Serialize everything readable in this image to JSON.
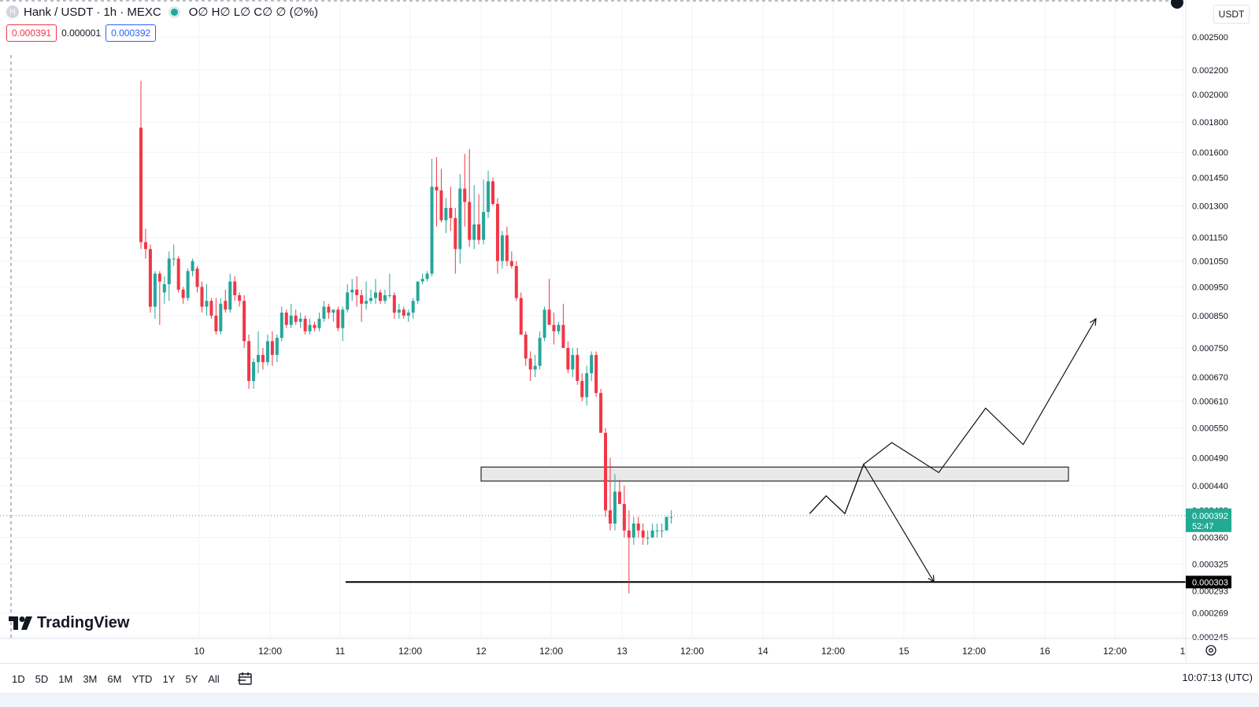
{
  "legend": {
    "symbol_icon": "H",
    "symbol": "Hank / USDT · 1h · MEXC",
    "ohlc": "O∅ H∅ L∅ C∅ ∅ (∅%)"
  },
  "quote": {
    "sell_price": "0.000391",
    "spread": "0.000001",
    "buy_price": "0.000392"
  },
  "currency_button": "USDT",
  "logo_text": "TradingView",
  "range_buttons": [
    "1D",
    "5D",
    "1M",
    "3M",
    "6M",
    "YTD",
    "1Y",
    "5Y",
    "All"
  ],
  "clock": "10:07:13 (UTC)",
  "colors": {
    "up": "#26a69a",
    "down": "#f23645",
    "current_price_label": "#22ab94",
    "support_line": "#000000"
  },
  "icons": [
    "settings-icon",
    "calendar-range-icon",
    "tradingview-logo-icon",
    "plus-circle-icon"
  ],
  "chart_data": {
    "type": "candlestick",
    "scale": "log",
    "y_ticks": [
      "0.002500",
      "0.002200",
      "0.002000",
      "0.001800",
      "0.001600",
      "0.001450",
      "0.001300",
      "0.001150",
      "0.001050",
      "0.000950",
      "0.000850",
      "0.000750",
      "0.000670",
      "0.000610",
      "0.000550",
      "0.000490",
      "0.000440",
      "0.000360",
      "0.000325",
      "0.000269",
      "0.000245"
    ],
    "y_ticks_partially_hidden": [
      "0.000400",
      "0.000293"
    ],
    "x_ticks": [
      "10",
      "12:00",
      "11",
      "12:00",
      "12",
      "12:00",
      "13",
      "12:00",
      "14",
      "12:00",
      "15",
      "12:00",
      "16",
      "12:00",
      "1"
    ],
    "current_price": {
      "price": "0.000392",
      "countdown": "52:47"
    },
    "support_level": {
      "price": "0.000303"
    },
    "resistance_zone": {
      "low": 0.000448,
      "high": 0.000473
    },
    "candles_ohlc": [
      [
        0.00176,
        0.00211,
        0.0011,
        0.00113
      ],
      [
        0.00113,
        0.00119,
        0.00106,
        0.0011
      ],
      [
        0.0011,
        0.00112,
        0.00086,
        0.00088
      ],
      [
        0.00088,
        0.00101,
        0.00084,
        0.001
      ],
      [
        0.001,
        0.00101,
        0.00082,
        0.00097
      ],
      [
        0.00093,
        0.00099,
        0.00089,
        0.00096
      ],
      [
        0.00096,
        0.00109,
        0.0009,
        0.00106
      ],
      [
        0.00106,
        0.00112,
        0.00103,
        0.00106
      ],
      [
        0.00106,
        0.00107,
        0.00093,
        0.00094
      ],
      [
        0.00094,
        0.00095,
        0.00089,
        0.00091
      ],
      [
        0.00091,
        0.00102,
        0.0009,
        0.00101
      ],
      [
        0.00101,
        0.00106,
        0.00099,
        0.00105
      ],
      [
        0.00102,
        0.00103,
        0.00093,
        0.00095
      ],
      [
        0.00095,
        0.00097,
        0.00086,
        0.00088
      ],
      [
        0.00088,
        0.00096,
        0.00085,
        0.0009
      ],
      [
        0.0009,
        0.00091,
        0.00084,
        0.00085
      ],
      [
        0.00085,
        0.00091,
        0.00079,
        0.0008
      ],
      [
        0.0008,
        0.00091,
        0.00079,
        0.00089
      ],
      [
        0.0009,
        0.00094,
        0.00086,
        0.00087
      ],
      [
        0.00087,
        0.001,
        0.00086,
        0.00097
      ],
      [
        0.00097,
        0.00099,
        0.0009,
        0.00092
      ],
      [
        0.00092,
        0.00093,
        0.00088,
        0.0009
      ],
      [
        0.0009,
        0.00092,
        0.00075,
        0.00077
      ],
      [
        0.00077,
        0.00079,
        0.00064,
        0.00066
      ],
      [
        0.00066,
        0.00072,
        0.00064,
        0.00071
      ],
      [
        0.00071,
        0.0008,
        0.00068,
        0.00073
      ],
      [
        0.00073,
        0.00075,
        0.00069,
        0.00071
      ],
      [
        0.00071,
        0.00079,
        0.0007,
        0.00077
      ],
      [
        0.00077,
        0.0008,
        0.0007,
        0.00073
      ],
      [
        0.00073,
        0.00079,
        0.00071,
        0.00078
      ],
      [
        0.00078,
        0.00088,
        0.00077,
        0.00086
      ],
      [
        0.00086,
        0.00087,
        0.00081,
        0.00082
      ],
      [
        0.00082,
        0.00089,
        0.00081,
        0.00085
      ],
      [
        0.00085,
        0.00087,
        0.00082,
        0.00083
      ],
      [
        0.00083,
        0.00086,
        0.00081,
        0.00084
      ],
      [
        0.00084,
        0.00085,
        0.00079,
        0.0008
      ],
      [
        0.0008,
        0.00084,
        0.00079,
        0.00082
      ],
      [
        0.00082,
        0.00083,
        0.0008,
        0.00081
      ],
      [
        0.00081,
        0.00086,
        0.0008,
        0.00084
      ],
      [
        0.00084,
        0.0009,
        0.00083,
        0.00088
      ],
      [
        0.00088,
        0.00089,
        0.00084,
        0.00086
      ],
      [
        0.00086,
        0.00087,
        0.00083,
        0.00087
      ],
      [
        0.00087,
        0.00088,
        0.0008,
        0.00081
      ],
      [
        0.00081,
        0.00088,
        0.00077,
        0.00087
      ],
      [
        0.00087,
        0.00096,
        0.00086,
        0.00093
      ],
      [
        0.00093,
        0.00098,
        0.0009,
        0.00094
      ],
      [
        0.00094,
        0.00099,
        0.00088,
        0.00092
      ],
      [
        0.00092,
        0.00094,
        0.00083,
        0.00089
      ],
      [
        0.00089,
        0.00097,
        0.00087,
        0.0009
      ],
      [
        0.0009,
        0.00094,
        0.00089,
        0.00091
      ],
      [
        0.00091,
        0.00098,
        0.00089,
        0.00093
      ],
      [
        0.00093,
        0.00094,
        0.00089,
        0.0009
      ],
      [
        0.0009,
        0.00094,
        0.00089,
        0.00092
      ],
      [
        0.00092,
        0.001,
        0.00091,
        0.00092
      ],
      [
        0.00092,
        0.00093,
        0.00084,
        0.00086
      ],
      [
        0.00086,
        0.00089,
        0.00084,
        0.00087
      ],
      [
        0.00087,
        0.00088,
        0.00084,
        0.00085
      ],
      [
        0.00085,
        0.00087,
        0.00083,
        0.00086
      ],
      [
        0.00086,
        0.00091,
        0.00084,
        0.0009
      ],
      [
        0.0009,
        0.00097,
        0.00089,
        0.00097
      ],
      [
        0.00097,
        0.001,
        0.00096,
        0.00098
      ],
      [
        0.00098,
        0.00101,
        0.00097,
        0.001
      ],
      [
        0.001,
        0.00156,
        0.00099,
        0.0014
      ],
      [
        0.0014,
        0.00157,
        0.0012,
        0.00138
      ],
      [
        0.00138,
        0.0015,
        0.00122,
        0.00123
      ],
      [
        0.00123,
        0.00134,
        0.00117,
        0.00129
      ],
      [
        0.00129,
        0.0014,
        0.00118,
        0.00124
      ],
      [
        0.00124,
        0.00129,
        0.001,
        0.0011
      ],
      [
        0.0011,
        0.00147,
        0.00104,
        0.00139
      ],
      [
        0.00139,
        0.00159,
        0.0012,
        0.00132
      ],
      [
        0.00132,
        0.00162,
        0.00111,
        0.00114
      ],
      [
        0.00114,
        0.00141,
        0.0011,
        0.00121
      ],
      [
        0.00121,
        0.00136,
        0.00112,
        0.00114
      ],
      [
        0.00114,
        0.00144,
        0.00112,
        0.00127
      ],
      [
        0.00127,
        0.00149,
        0.00124,
        0.00143
      ],
      [
        0.00143,
        0.00145,
        0.0013,
        0.00131
      ],
      [
        0.00131,
        0.00134,
        0.001,
        0.00105
      ],
      [
        0.00105,
        0.00118,
        0.00102,
        0.00116
      ],
      [
        0.00116,
        0.0012,
        0.00103,
        0.00105
      ],
      [
        0.00105,
        0.00109,
        0.00102,
        0.00103
      ],
      [
        0.00103,
        0.00105,
        0.0009,
        0.00091
      ],
      [
        0.00091,
        0.00093,
        0.00079,
        0.00079
      ],
      [
        0.00079,
        0.0008,
        0.0007,
        0.00072
      ],
      [
        0.00072,
        0.00074,
        0.00066,
        0.00069
      ],
      [
        0.00069,
        0.00073,
        0.00067,
        0.0007
      ],
      [
        0.0007,
        0.0008,
        0.00069,
        0.00078
      ],
      [
        0.00078,
        0.00088,
        0.00077,
        0.00087
      ],
      [
        0.00087,
        0.00098,
        0.00083,
        0.00082
      ],
      [
        0.00082,
        0.00086,
        0.00076,
        0.0008
      ],
      [
        0.0008,
        0.00083,
        0.00079,
        0.00082
      ],
      [
        0.00082,
        0.00089,
        0.00075,
        0.00075
      ],
      [
        0.00075,
        0.00077,
        0.00068,
        0.00069
      ],
      [
        0.00069,
        0.00075,
        0.00067,
        0.00073
      ],
      [
        0.00073,
        0.00075,
        0.00065,
        0.00066
      ],
      [
        0.00066,
        0.00068,
        0.00061,
        0.00062
      ],
      [
        0.00062,
        0.0007,
        0.0006,
        0.00068
      ],
      [
        0.00068,
        0.00074,
        0.00066,
        0.00073
      ],
      [
        0.00073,
        0.00074,
        0.00062,
        0.00063
      ],
      [
        0.00063,
        0.00064,
        0.00054,
        0.00054
      ],
      [
        0.00054,
        0.00055,
        0.00039,
        0.0004
      ],
      [
        0.0004,
        0.00049,
        0.00037,
        0.00038
      ],
      [
        0.00038,
        0.00046,
        0.00037,
        0.00043
      ],
      [
        0.00043,
        0.00045,
        0.00041,
        0.00041
      ],
      [
        0.00041,
        0.00044,
        0.00036,
        0.00037
      ],
      [
        0.00037,
        0.0004,
        0.00029,
        0.00036
      ],
      [
        0.00036,
        0.00039,
        0.00035,
        0.00038
      ],
      [
        0.00038,
        0.00039,
        0.00036,
        0.00037
      ],
      [
        0.00037,
        0.00038,
        0.00035,
        0.00036
      ],
      [
        0.00036,
        0.00037,
        0.00035,
        0.00036
      ],
      [
        0.00036,
        0.00038,
        0.00036,
        0.00037
      ],
      [
        0.00037,
        0.00038,
        0.00036,
        0.00037
      ],
      [
        0.00037,
        0.00038,
        0.00036,
        0.00037
      ],
      [
        0.00037,
        0.00039,
        0.00037,
        0.00039
      ],
      [
        0.00039,
        0.0004,
        0.00038,
        0.00039
      ]
    ],
    "projection_paths": [
      [
        0.000395,
        0.000423,
        0.000395,
        0.000478,
        0.00052,
        0.000463,
        0.000594,
        0.000516,
        0.00084
      ],
      [
        0.000395,
        0.000423,
        0.000395,
        0.000478,
        0.000303
      ]
    ]
  }
}
